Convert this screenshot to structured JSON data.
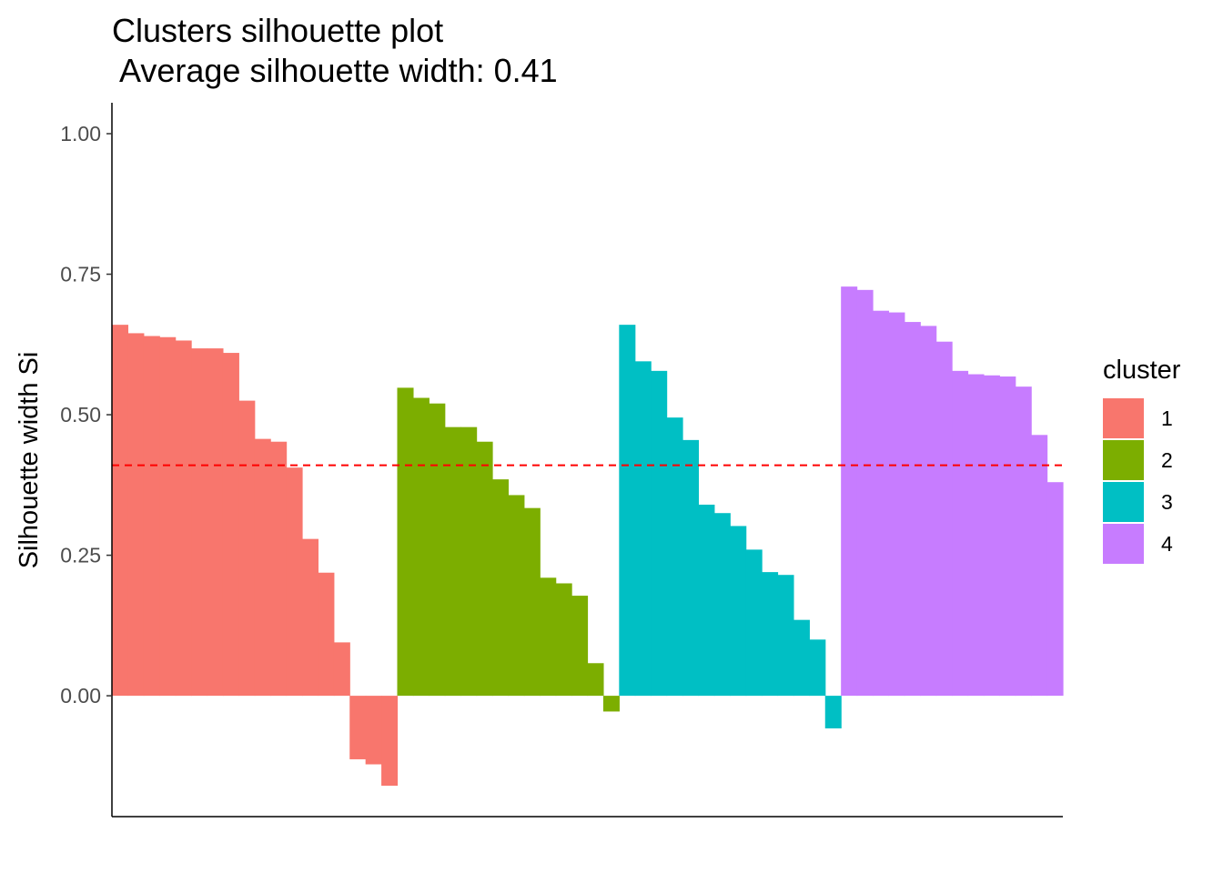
{
  "chart_data": {
    "type": "bar",
    "title": "Clusters silhouette plot",
    "subtitle": " Average silhouette width: 0.41",
    "xlabel": "",
    "ylabel": "Silhouette width Si",
    "ylim": [
      -0.215,
      1.055
    ],
    "yticks": [
      "0.00",
      "0.25",
      "0.50",
      "0.75",
      "1.00"
    ],
    "ytick_values": [
      0,
      0.25,
      0.5,
      0.75,
      1.0
    ],
    "average_line": 0.41,
    "average_line_color": "#ff0000",
    "grid": false,
    "legend": {
      "title": "cluster",
      "position": "right"
    },
    "series": [
      {
        "name": "1",
        "color": "#F8766D",
        "values": [
          0.66,
          0.645,
          0.64,
          0.638,
          0.632,
          0.618,
          0.618,
          0.61,
          0.525,
          0.457,
          0.452,
          0.406,
          0.279,
          0.219,
          0.095,
          -0.113,
          -0.122,
          -0.16
        ]
      },
      {
        "name": "2",
        "color": "#7CAE00",
        "values": [
          0.548,
          0.53,
          0.52,
          0.478,
          0.478,
          0.452,
          0.385,
          0.357,
          0.334,
          0.21,
          0.2,
          0.178,
          0.058,
          -0.028
        ]
      },
      {
        "name": "3",
        "color": "#00BFC4",
        "values": [
          0.66,
          0.595,
          0.578,
          0.495,
          0.455,
          0.34,
          0.325,
          0.302,
          0.26,
          0.22,
          0.215,
          0.135,
          0.1,
          -0.058
        ]
      },
      {
        "name": "4",
        "color": "#C77CFF",
        "values": [
          0.728,
          0.722,
          0.685,
          0.682,
          0.665,
          0.658,
          0.63,
          0.578,
          0.572,
          0.57,
          0.568,
          0.55,
          0.464,
          0.38
        ]
      }
    ]
  }
}
